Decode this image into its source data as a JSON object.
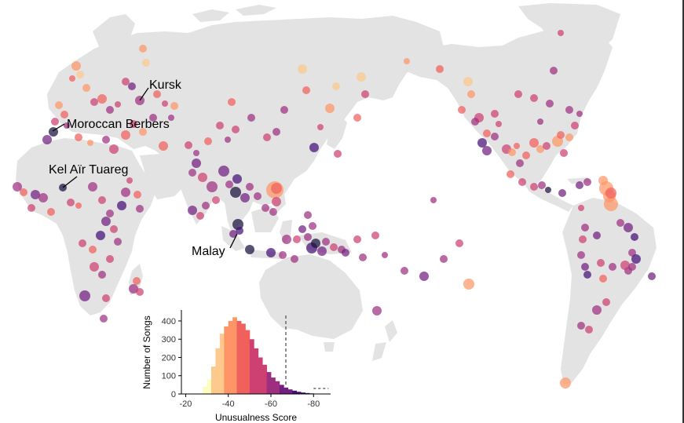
{
  "map": {
    "labels": [
      "Kursk",
      "Moroccan Berbers",
      "Kel Aïr Tuareg",
      "Malay"
    ],
    "colors": {
      "land": "#e3e3e3",
      "palette": [
        "#fcfdbf",
        "#fec98d",
        "#fd9567",
        "#f1605d",
        "#cd4071",
        "#9e2f7f",
        "#721f81",
        "#440f76",
        "#180f3d"
      ]
    }
  },
  "inset": {
    "xlabel": "Unusualness Score",
    "ylabel": "Number of Songs"
  },
  "chart_data": {
    "type": "bar",
    "title": "",
    "xlabel": "Unusualness Score",
    "ylabel": "Number of Songs",
    "xlim": [
      -18,
      -88
    ],
    "ylim": [
      0,
      460
    ],
    "xticks": [
      "-20",
      "-40",
      "-60",
      "-80"
    ],
    "yticks": [
      "0",
      "100",
      "200",
      "300",
      "400"
    ],
    "bin_width": 2,
    "bins": [
      {
        "x": -29,
        "value": 40
      },
      {
        "x": -31,
        "value": 80
      },
      {
        "x": -33,
        "value": 150
      },
      {
        "x": -35,
        "value": 250
      },
      {
        "x": -37,
        "value": 330
      },
      {
        "x": -39,
        "value": 370
      },
      {
        "x": -41,
        "value": 400
      },
      {
        "x": -43,
        "value": 420
      },
      {
        "x": -45,
        "value": 400
      },
      {
        "x": -47,
        "value": 385
      },
      {
        "x": -49,
        "value": 350
      },
      {
        "x": -51,
        "value": 300
      },
      {
        "x": -53,
        "value": 250
      },
      {
        "x": -55,
        "value": 200
      },
      {
        "x": -57,
        "value": 160
      },
      {
        "x": -59,
        "value": 120
      },
      {
        "x": -61,
        "value": 90
      },
      {
        "x": -63,
        "value": 70
      },
      {
        "x": -65,
        "value": 50
      },
      {
        "x": -67,
        "value": 35
      },
      {
        "x": -69,
        "value": 25
      },
      {
        "x": -71,
        "value": 18
      },
      {
        "x": -73,
        "value": 12
      },
      {
        "x": -75,
        "value": 8
      },
      {
        "x": -77,
        "value": 5
      },
      {
        "x": -79,
        "value": 3
      }
    ],
    "threshold": -67
  }
}
